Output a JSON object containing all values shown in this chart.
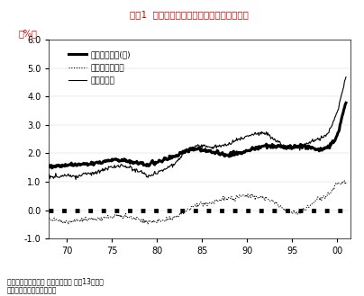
{
  "title": "図表1  構造的失業率、需要不足失業率の推移",
  "ylabel": "（%）",
  "footnote1": "（出所）厚生労働省 労働経済白書 平成13年度版",
  "footnote2": "（注）摩擦的失業率を含む",
  "legend_labels": [
    "構造的失業率(注)",
    "需要不足失業率",
    "完全失業率"
  ],
  "ylim": [
    -1.0,
    6.0
  ],
  "yticks": [
    -1.0,
    0.0,
    1.0,
    2.0,
    3.0,
    4.0,
    5.0,
    6.0
  ],
  "xtick_labels": [
    "70",
    "75",
    "80",
    "85",
    "90",
    "95",
    "00"
  ],
  "title_color": "#cc0000",
  "ylabel_color": "#cc0000",
  "background": "#ffffff",
  "years": [
    1968,
    1969,
    1970,
    1971,
    1972,
    1973,
    1974,
    1975,
    1976,
    1977,
    1978,
    1979,
    1980,
    1981,
    1982,
    1983,
    1984,
    1985,
    1986,
    1987,
    1988,
    1989,
    1990,
    1991,
    1992,
    1993,
    1994,
    1995,
    1996,
    1997,
    1998,
    1999,
    2000,
    2001
  ],
  "structural": [
    1.55,
    1.55,
    1.58,
    1.6,
    1.62,
    1.65,
    1.7,
    1.78,
    1.78,
    1.72,
    1.65,
    1.6,
    1.7,
    1.8,
    1.9,
    2.05,
    2.15,
    2.15,
    2.05,
    2.0,
    1.95,
    2.0,
    2.08,
    2.18,
    2.28,
    2.25,
    2.2,
    2.22,
    2.28,
    2.2,
    2.12,
    2.18,
    2.6,
    3.8
  ],
  "demand_deficit": [
    -0.3,
    -0.35,
    -0.38,
    -0.36,
    -0.33,
    -0.32,
    -0.28,
    -0.22,
    -0.18,
    -0.25,
    -0.3,
    -0.42,
    -0.38,
    -0.33,
    -0.22,
    -0.08,
    0.12,
    0.22,
    0.28,
    0.38,
    0.42,
    0.48,
    0.52,
    0.48,
    0.42,
    0.28,
    0.08,
    -0.08,
    -0.08,
    0.18,
    0.42,
    0.52,
    0.95,
    1.0
  ],
  "total_unemployment": [
    1.2,
    1.18,
    1.22,
    1.18,
    1.28,
    1.32,
    1.42,
    1.52,
    1.58,
    1.48,
    1.38,
    1.18,
    1.32,
    1.48,
    1.62,
    1.98,
    2.22,
    2.28,
    2.22,
    2.28,
    2.32,
    2.48,
    2.58,
    2.68,
    2.72,
    2.52,
    2.28,
    2.18,
    2.22,
    2.38,
    2.52,
    2.68,
    3.4,
    4.7
  ]
}
